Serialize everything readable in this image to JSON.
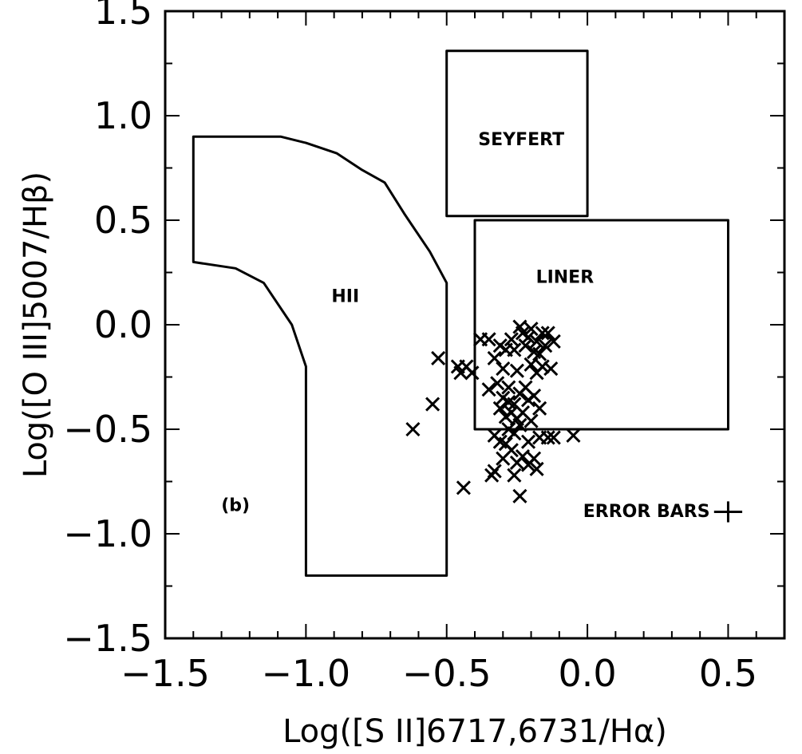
{
  "chart_data": {
    "type": "scatter",
    "title": "",
    "xlabel": "Log([S II]6717,6731/Hα)",
    "ylabel": "Log([O III]5007/Hβ)",
    "xlim": [
      -1.5,
      0.7
    ],
    "ylim": [
      -1.5,
      1.5
    ],
    "x_ticks": [
      "−1.5",
      "−1.0",
      "−0.5",
      "0.0",
      "0.5"
    ],
    "y_ticks": [
      "1.5",
      "1.0",
      "0.5",
      "0.0",
      "−0.5",
      "−1.0",
      "−1.5"
    ],
    "marker": "x",
    "regions": [
      {
        "label": "HII",
        "label_at": [
          -0.86,
          0.14
        ],
        "polygon": [
          [
            -1.4,
            0.9
          ],
          [
            -1.09,
            0.9
          ],
          [
            -1.0,
            0.87
          ],
          [
            -0.89,
            0.82
          ],
          [
            -0.8,
            0.74
          ],
          [
            -0.72,
            0.68
          ],
          [
            -0.65,
            0.53
          ],
          [
            -0.56,
            0.35
          ],
          [
            -0.5,
            0.2
          ],
          [
            -0.5,
            -1.2
          ],
          [
            -1.0,
            -1.2
          ],
          [
            -1.0,
            -0.2
          ],
          [
            -1.05,
            0.0
          ],
          [
            -1.15,
            0.2
          ],
          [
            -1.25,
            0.27
          ],
          [
            -1.4,
            0.3
          ]
        ]
      },
      {
        "label": "SEYFERT",
        "label_at": [
          -0.235,
          0.89
        ],
        "polygon": [
          [
            -0.5,
            1.31
          ],
          [
            0.0,
            1.31
          ],
          [
            0.0,
            0.52
          ],
          [
            -0.5,
            0.52
          ]
        ]
      },
      {
        "label": "LINER",
        "label_at": [
          -0.08,
          0.23
        ],
        "polygon": [
          [
            -0.4,
            0.5
          ],
          [
            0.5,
            0.5
          ],
          [
            0.5,
            -0.5
          ],
          [
            -0.4,
            -0.5
          ]
        ]
      }
    ],
    "annotations": [
      {
        "text": "(b)",
        "at": [
          -1.25,
          -0.86
        ]
      },
      {
        "text": "ERROR BARS",
        "at": [
          0.21,
          -0.89
        ]
      }
    ],
    "error_bar": {
      "x": 0.5,
      "y": -0.895,
      "dx": 0.05,
      "dy": 0.05
    },
    "points": [
      [
        -0.62,
        -0.5
      ],
      [
        -0.55,
        -0.38
      ],
      [
        -0.53,
        -0.16
      ],
      [
        -0.44,
        -0.78
      ],
      [
        -0.46,
        -0.2
      ],
      [
        -0.45,
        -0.23
      ],
      [
        -0.43,
        -0.2
      ],
      [
        -0.41,
        -0.23
      ],
      [
        -0.38,
        -0.07
      ],
      [
        -0.35,
        -0.07
      ],
      [
        -0.33,
        -0.16
      ],
      [
        -0.31,
        -0.1
      ],
      [
        -0.3,
        -0.21
      ],
      [
        -0.29,
        -0.12
      ],
      [
        -0.27,
        -0.07
      ],
      [
        -0.35,
        -0.31
      ],
      [
        -0.32,
        -0.28
      ],
      [
        -0.3,
        -0.35
      ],
      [
        -0.28,
        -0.3
      ],
      [
        -0.26,
        -0.12
      ],
      [
        -0.25,
        -0.22
      ],
      [
        -0.24,
        -0.01
      ],
      [
        -0.23,
        -0.04
      ],
      [
        -0.22,
        -0.1
      ],
      [
        -0.21,
        -0.06
      ],
      [
        -0.2,
        -0.02
      ],
      [
        -0.19,
        -0.13
      ],
      [
        -0.18,
        -0.08
      ],
      [
        -0.17,
        -0.14
      ],
      [
        -0.16,
        -0.04
      ],
      [
        -0.15,
        -0.1
      ],
      [
        -0.14,
        -0.04
      ],
      [
        -0.12,
        -0.08
      ],
      [
        -0.2,
        -0.19
      ],
      [
        -0.18,
        -0.23
      ],
      [
        -0.16,
        -0.2
      ],
      [
        -0.13,
        -0.21
      ],
      [
        -0.22,
        -0.3
      ],
      [
        -0.24,
        -0.33
      ],
      [
        -0.26,
        -0.38
      ],
      [
        -0.27,
        -0.42
      ],
      [
        -0.25,
        -0.45
      ],
      [
        -0.23,
        -0.42
      ],
      [
        -0.21,
        -0.36
      ],
      [
        -0.19,
        -0.34
      ],
      [
        -0.17,
        -0.4
      ],
      [
        -0.29,
        -0.44
      ],
      [
        -0.31,
        -0.4
      ],
      [
        -0.28,
        -0.5
      ],
      [
        -0.26,
        -0.52
      ],
      [
        -0.24,
        -0.48
      ],
      [
        -0.33,
        -0.53
      ],
      [
        -0.31,
        -0.56
      ],
      [
        -0.3,
        -0.64
      ],
      [
        -0.27,
        -0.6
      ],
      [
        -0.25,
        -0.66
      ],
      [
        -0.23,
        -0.63
      ],
      [
        -0.21,
        -0.67
      ],
      [
        -0.19,
        -0.64
      ],
      [
        -0.18,
        -0.69
      ],
      [
        -0.26,
        -0.72
      ],
      [
        -0.33,
        -0.7
      ],
      [
        -0.34,
        -0.72
      ],
      [
        -0.24,
        -0.82
      ],
      [
        -0.17,
        -0.54
      ],
      [
        -0.14,
        -0.54
      ],
      [
        -0.12,
        -0.54
      ],
      [
        -0.05,
        -0.53
      ],
      [
        -0.21,
        -0.56
      ],
      [
        -0.29,
        -0.57
      ],
      [
        -0.2,
        -0.46
      ],
      [
        -0.28,
        -0.37
      ]
    ]
  }
}
